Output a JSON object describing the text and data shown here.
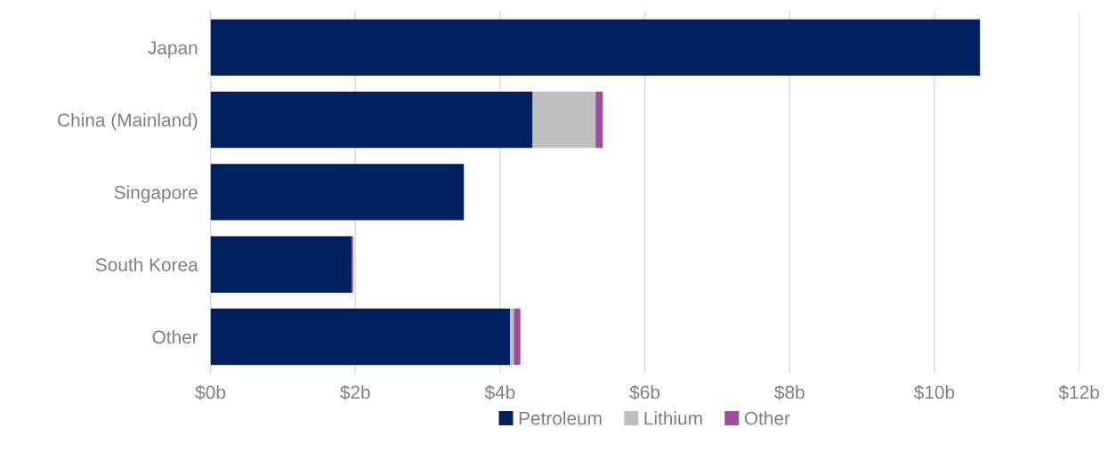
{
  "chart_data": {
    "type": "bar",
    "orientation": "horizontal",
    "stacked": true,
    "categories": [
      "Japan",
      "China (Mainland)",
      "Singapore",
      "South Korea",
      "Other"
    ],
    "series": [
      {
        "name": "Petroleum",
        "color": "#002060",
        "values": [
          10.63,
          4.45,
          3.5,
          1.95,
          4.14
        ]
      },
      {
        "name": "Lithium",
        "color": "#bfbfbf",
        "values": [
          0,
          0.87,
          0,
          0,
          0.05
        ]
      },
      {
        "name": "Other",
        "color": "#a04b9f",
        "values": [
          0,
          0.1,
          0,
          0.02,
          0.09
        ]
      }
    ],
    "xlim": [
      0,
      12
    ],
    "xticks": [
      {
        "value": 0,
        "label": "$0b"
      },
      {
        "value": 2,
        "label": "$2b"
      },
      {
        "value": 4,
        "label": "$4b"
      },
      {
        "value": 6,
        "label": "$6b"
      },
      {
        "value": 8,
        "label": "$8b"
      },
      {
        "value": 10,
        "label": "$10b"
      },
      {
        "value": 12,
        "label": "$12b"
      }
    ],
    "grid": "x",
    "legend": "bottom"
  }
}
